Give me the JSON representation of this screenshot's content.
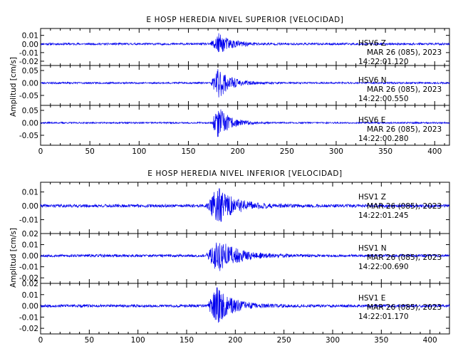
{
  "chart_data": [
    {
      "type": "line",
      "title": "E HOSP HEREDIA NIVEL SUPERIOR [VELOCIDAD]",
      "ylabel": "Amplitud [cm/s]",
      "xlim": [
        0,
        415
      ],
      "xticks": [
        "0",
        "50",
        "100",
        "150",
        "200",
        "250",
        "300",
        "350",
        "400"
      ],
      "series": [
        {
          "station": "HSV6",
          "component": "Z",
          "date": "MAR 26 (085), 2023",
          "time": "14:22:01.120",
          "ylim": [
            -0.025,
            0.018
          ],
          "yticks": [
            0.01,
            0.0,
            -0.01,
            -0.02
          ],
          "yticklabels": [
            "0.01",
            "0.00",
            "-0.01",
            "-0.02"
          ],
          "noise": 0.0012,
          "event_start": 172,
          "event_peak": 180,
          "event_amp": 0.012,
          "decay": 14,
          "seed": 11
        },
        {
          "station": "HSV6",
          "component": "N",
          "date": "MAR 26 (085), 2023",
          "time": "14:22:00.550",
          "ylim": [
            -0.09,
            0.07
          ],
          "yticks": [
            0.05,
            0.0,
            -0.05
          ],
          "yticklabels": [
            "0.05",
            "0.00",
            "-0.05"
          ],
          "noise": 0.0035,
          "event_start": 172,
          "event_peak": 181,
          "event_amp": 0.06,
          "decay": 12,
          "seed": 23
        },
        {
          "station": "HSV6",
          "component": "E",
          "date": "MAR 26 (085), 2023",
          "time": "14:22:00.280",
          "ylim": [
            -0.09,
            0.07
          ],
          "yticks": [
            0.05,
            0.0,
            -0.05
          ],
          "yticklabels": [
            "0.05",
            "0.00",
            "-0.05"
          ],
          "noise": 0.003,
          "event_start": 173,
          "event_peak": 180,
          "event_amp": 0.065,
          "decay": 12,
          "seed": 37
        }
      ]
    },
    {
      "type": "line",
      "title": "E HOSP HEREDIA NIVEL INFERIOR [VELOCIDAD]",
      "ylabel": "Amplitud [cm/s]",
      "xlim": [
        0,
        420
      ],
      "xticks": [
        "0",
        "50",
        "100",
        "150",
        "200",
        "250",
        "300",
        "350",
        "400"
      ],
      "series": [
        {
          "station": "HSV1",
          "component": "Z",
          "date": "MAR 26 (085), 2023",
          "time": "14:22:01.245",
          "ylim": [
            -0.02,
            0.017
          ],
          "yticks": [
            0.01,
            0.0,
            -0.01
          ],
          "yticklabels": [
            "0.01",
            "0.00",
            "-0.01"
          ],
          "noise": 0.0011,
          "event_start": 170,
          "event_peak": 182,
          "event_amp": 0.013,
          "decay": 18,
          "seed": 41
        },
        {
          "station": "HSV1",
          "component": "N",
          "date": "MAR 26 (085), 2023",
          "time": "14:22:00.690",
          "ylim": [
            -0.025,
            0.02
          ],
          "yticks": [
            0.02,
            0.01,
            0.0,
            -0.01,
            -0.02
          ],
          "yticklabels": [
            "0.02",
            "0.01",
            "0.00",
            "-0.01",
            "-0.02"
          ],
          "noise": 0.0012,
          "event_start": 170,
          "event_peak": 182,
          "event_amp": 0.015,
          "decay": 20,
          "seed": 53
        },
        {
          "station": "HSV1",
          "component": "E",
          "date": "MAR 26 (085), 2023",
          "time": "14:22:01.170",
          "ylim": [
            -0.025,
            0.02
          ],
          "yticks": [
            0.02,
            0.01,
            0.0,
            -0.01,
            -0.02
          ],
          "yticklabels": [
            "0.02",
            "0.01",
            "0.00",
            "-0.01",
            "-0.02"
          ],
          "noise": 0.0012,
          "event_start": 171,
          "event_peak": 181,
          "event_amp": 0.016,
          "decay": 16,
          "seed": 67
        }
      ]
    }
  ]
}
